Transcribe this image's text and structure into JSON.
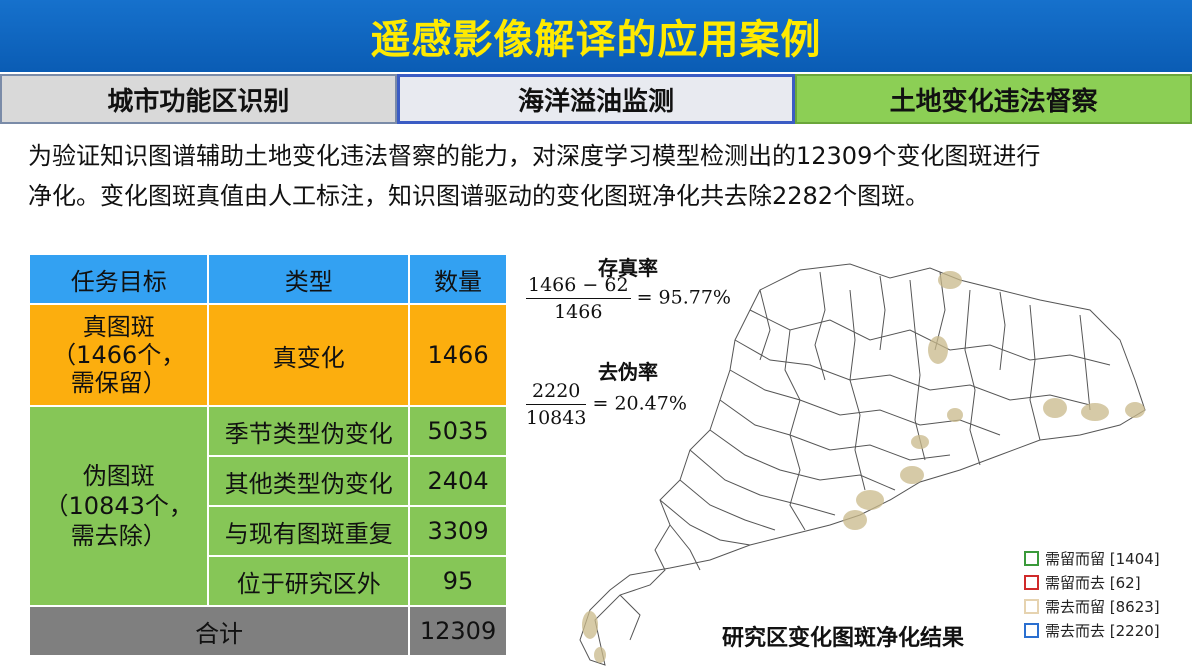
{
  "header": {
    "title": "遥感影像解译的应用案例"
  },
  "tabs": [
    {
      "label": "城市功能区识别"
    },
    {
      "label": "海洋溢油监测"
    },
    {
      "label": "土地变化违法督察"
    }
  ],
  "intro": {
    "line1": "为验证知识图谱辅助土地变化违法督察的能力，对深度学习模型检测出的12309个变化图斑进行",
    "line2": "净化。变化图斑真值由人工标注，知识图谱驱动的变化图斑净化共去除2282个图斑。"
  },
  "table": {
    "headers": [
      "任务目标",
      "类型",
      "数量"
    ],
    "true_group": {
      "l1": "真图斑",
      "l2": "（1466个，",
      "l3": "需保留）",
      "type": "真变化",
      "count": "1466"
    },
    "false_group": {
      "l1": "伪图斑",
      "l2": "（10843个，",
      "l3": "需去除）",
      "rows": [
        {
          "type": "季节类型伪变化",
          "count": "5035"
        },
        {
          "type": "其他类型伪变化",
          "count": "2404"
        },
        {
          "type": "与现有图斑重复",
          "count": "3309"
        },
        {
          "type": "位于研究区外",
          "count": "95"
        }
      ]
    },
    "total": {
      "label": "合计",
      "count": "12309"
    }
  },
  "formulas": {
    "retain": {
      "label": "存真率",
      "num": "1466 − 62",
      "den": "1466",
      "result": "= 95.77%"
    },
    "remove": {
      "label": "去伪率",
      "num": "2220",
      "den": "10843",
      "result": "= 20.47%"
    }
  },
  "legend": [
    {
      "label": "需留而留 [1404]",
      "color": "#3a9a3a"
    },
    {
      "label": "需留而去 [62]",
      "color": "#d02a2a"
    },
    {
      "label": "需去而留 [8623]",
      "color": "#e6d3b0"
    },
    {
      "label": "需去而去 [2220]",
      "color": "#2a6fd0"
    }
  ],
  "map": {
    "caption": "研究区变化图斑净化结果"
  }
}
